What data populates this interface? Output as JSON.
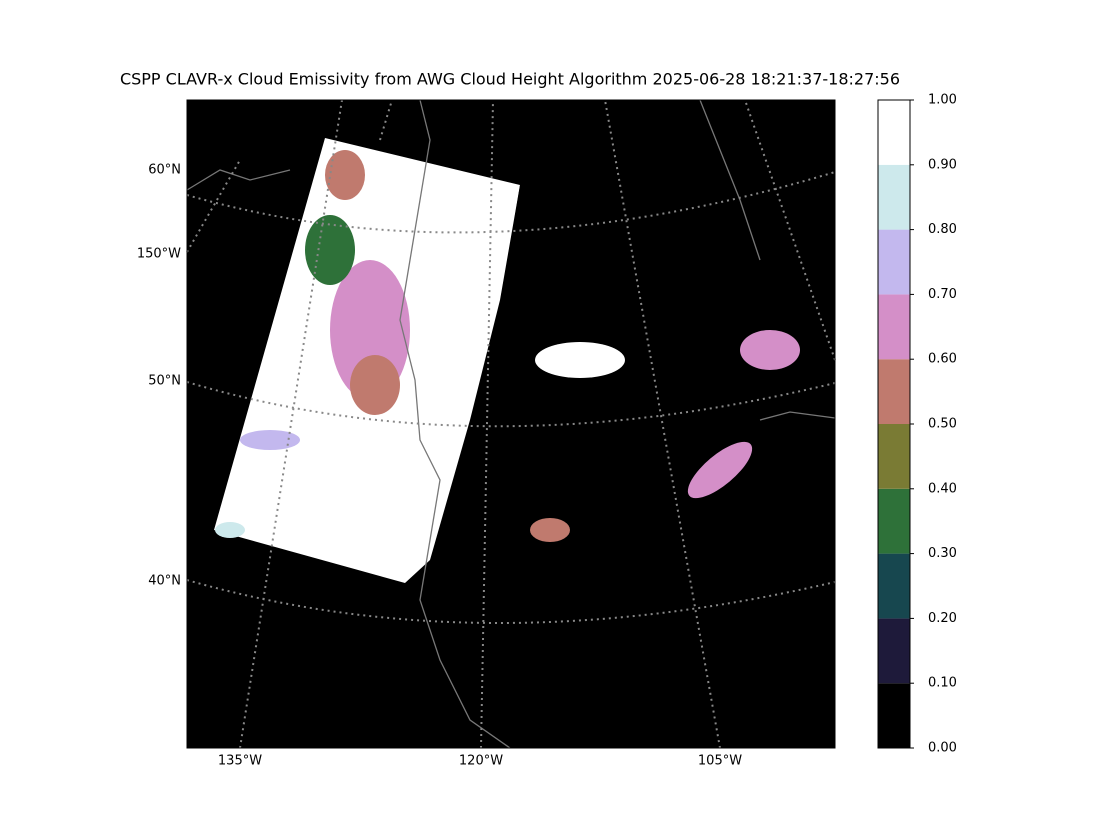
{
  "title": "CSPP CLAVR-x Cloud Emissivity from AWG Cloud Height Algorithm 2025-06-28 18:21:37-18:27:56",
  "map": {
    "lat_labels": [
      "60°N",
      "150°W",
      "50°N",
      "40°N"
    ],
    "lon_labels": [
      "135°W",
      "120°W",
      "105°W"
    ]
  },
  "colorbar": {
    "vlim": [
      0,
      1
    ],
    "colors": [
      "#000000",
      "#1e1a3a",
      "#17474f",
      "#2e7139",
      "#7a7b34",
      "#c07a6e",
      "#d48fc8",
      "#c3b8ee",
      "#cde9ec",
      "#ffffff"
    ],
    "ticks": [
      {
        "value": 0,
        "label": "0.00"
      },
      {
        "value": 0.1,
        "label": "0.10"
      },
      {
        "value": 0.2,
        "label": "0.20"
      },
      {
        "value": 0.3,
        "label": "0.30"
      },
      {
        "value": 0.4,
        "label": "0.40"
      },
      {
        "value": 0.5,
        "label": "0.50"
      },
      {
        "value": 0.6,
        "label": "0.60"
      },
      {
        "value": 0.7,
        "label": "0.70"
      },
      {
        "value": 0.8,
        "label": "0.80"
      },
      {
        "value": 0.9,
        "label": "0.90"
      },
      {
        "value": 1,
        "label": "1.00"
      }
    ]
  }
}
